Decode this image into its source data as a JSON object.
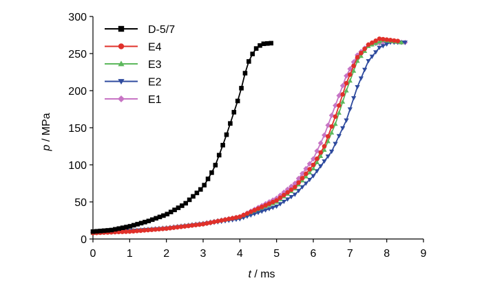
{
  "chart_data": {
    "type": "line",
    "xlabel_var": "t",
    "xlabel_unit": " / ms",
    "ylabel_var": "p",
    "ylabel_unit": " / MPa",
    "xlim": [
      0,
      9
    ],
    "ylim": [
      0,
      300
    ],
    "xticks": [
      "0",
      "1",
      "2",
      "3",
      "4",
      "5",
      "6",
      "7",
      "8",
      "9"
    ],
    "yticks": [
      "0",
      "50",
      "100",
      "150",
      "200",
      "250",
      "300"
    ],
    "grid": false,
    "legend_position": "top-left",
    "series": [
      {
        "name": "D-5/7",
        "color": "#000000",
        "marker": "square",
        "points": [
          [
            0,
            10
          ],
          [
            0.5,
            12
          ],
          [
            1,
            17
          ],
          [
            1.5,
            24
          ],
          [
            2,
            33
          ],
          [
            2.5,
            47
          ],
          [
            3,
            70
          ],
          [
            3.3,
            95
          ],
          [
            3.6,
            135
          ],
          [
            3.8,
            165
          ],
          [
            4.0,
            195
          ],
          [
            4.2,
            235
          ],
          [
            4.4,
            255
          ],
          [
            4.6,
            263
          ],
          [
            4.85,
            264
          ]
        ]
      },
      {
        "name": "E4",
        "color": "#e0302a",
        "marker": "circle",
        "points": [
          [
            0,
            8
          ],
          [
            1,
            10
          ],
          [
            2,
            14
          ],
          [
            3,
            20
          ],
          [
            4,
            30
          ],
          [
            5,
            52
          ],
          [
            5.5,
            70
          ],
          [
            6,
            100
          ],
          [
            6.3,
            125
          ],
          [
            6.6,
            165
          ],
          [
            6.9,
            210
          ],
          [
            7.2,
            245
          ],
          [
            7.5,
            262
          ],
          [
            7.8,
            270
          ],
          [
            8.3,
            267
          ]
        ]
      },
      {
        "name": "E3",
        "color": "#5cb85c",
        "marker": "triangle-up",
        "points": [
          [
            0,
            8
          ],
          [
            1,
            11
          ],
          [
            2,
            15
          ],
          [
            3,
            21
          ],
          [
            4,
            30
          ],
          [
            5,
            50
          ],
          [
            5.5,
            68
          ],
          [
            6,
            95
          ],
          [
            6.3,
            120
          ],
          [
            6.6,
            155
          ],
          [
            6.9,
            200
          ],
          [
            7.2,
            240
          ],
          [
            7.5,
            260
          ],
          [
            7.9,
            268
          ],
          [
            8.4,
            265
          ]
        ]
      },
      {
        "name": "E2",
        "color": "#2e4a9e",
        "marker": "triangle-down",
        "points": [
          [
            0,
            9
          ],
          [
            1,
            11
          ],
          [
            2,
            14
          ],
          [
            3,
            20
          ],
          [
            4,
            27
          ],
          [
            5,
            44
          ],
          [
            5.5,
            60
          ],
          [
            6,
            85
          ],
          [
            6.5,
            118
          ],
          [
            6.9,
            160
          ],
          [
            7.2,
            205
          ],
          [
            7.5,
            240
          ],
          [
            7.8,
            258
          ],
          [
            8.1,
            265
          ],
          [
            8.5,
            265
          ]
        ]
      },
      {
        "name": "E1",
        "color": "#c774c4",
        "marker": "diamond",
        "points": [
          [
            0,
            9
          ],
          [
            1,
            11
          ],
          [
            2,
            15
          ],
          [
            3,
            21
          ],
          [
            4,
            30
          ],
          [
            5,
            55
          ],
          [
            5.5,
            75
          ],
          [
            6,
            108
          ],
          [
            6.3,
            140
          ],
          [
            6.6,
            180
          ],
          [
            6.9,
            220
          ],
          [
            7.2,
            248
          ],
          [
            7.5,
            262
          ],
          [
            8,
            266
          ],
          [
            8.5,
            265
          ]
        ]
      }
    ]
  }
}
